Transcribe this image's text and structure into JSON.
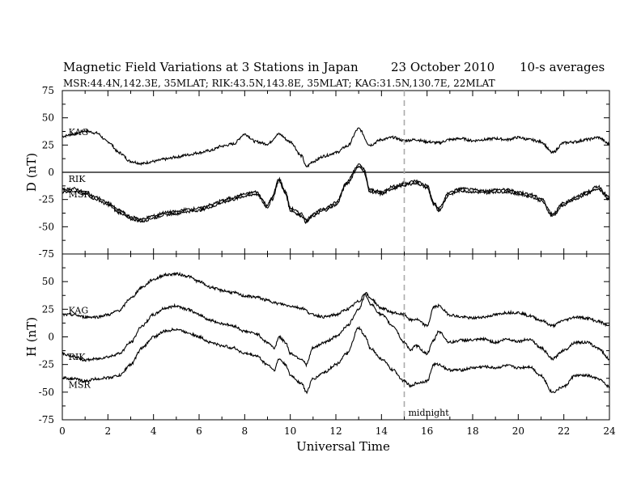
{
  "chart_data": {
    "type": "line",
    "title": "Magnetic Field Variations at 3 Stations in Japan",
    "date": "23  October 2010",
    "averaging": "10-s averages",
    "subtitle": "MSR:44.4N,142.3E, 35MLAT;  RIK:43.5N,143.8E, 35MLAT;  KAG:31.5N,130.7E, 22MLAT",
    "xlabel": "Universal Time",
    "xlim": [
      0,
      24
    ],
    "xticks": [
      "0",
      "2",
      "4",
      "6",
      "8",
      "10",
      "12",
      "14",
      "16",
      "18",
      "20",
      "22",
      "24"
    ],
    "annotation": {
      "text": "midnight",
      "x": 15
    },
    "grid": false,
    "panels": [
      {
        "ylabel": "D (nT)",
        "ylim": [
          -75,
          75
        ],
        "yticks": [
          "75",
          "50",
          "25",
          "0",
          "-25",
          "-50",
          "-75"
        ],
        "zero_line": true,
        "series": [
          {
            "name": "KAG",
            "x": [
              0,
              0.5,
              1,
              1.5,
              2,
              2.5,
              3,
              3.5,
              4,
              4.5,
              5,
              5.5,
              6,
              6.5,
              7,
              7.5,
              8,
              8.5,
              9,
              9.5,
              10,
              10.5,
              10.7,
              11,
              11.5,
              12,
              12.5,
              13,
              13.5,
              14,
              14.5,
              15,
              15.5,
              16,
              16.5,
              17,
              17.5,
              18,
              18.5,
              19,
              19.5,
              20,
              20.5,
              21,
              21.5,
              22,
              22.5,
              23,
              23.5,
              24
            ],
            "y": [
              33,
              35,
              38,
              36,
              28,
              18,
              10,
              8,
              10,
              12,
              14,
              16,
              18,
              20,
              24,
              26,
              35,
              28,
              26,
              35,
              28,
              15,
              5,
              10,
              15,
              18,
              24,
              40,
              25,
              30,
              32,
              29,
              30,
              28,
              27,
              30,
              31,
              29,
              30,
              31,
              30,
              32,
              30,
              28,
              18,
              27,
              28,
              30,
              32,
              26
            ]
          },
          {
            "name": "RIK",
            "x": [
              0,
              0.5,
              1,
              1.5,
              2,
              2.5,
              3,
              3.5,
              4,
              4.5,
              5,
              5.5,
              6,
              6.5,
              7,
              7.5,
              8,
              8.5,
              9,
              9.2,
              9.5,
              9.8,
              10,
              10.5,
              10.7,
              11,
              11.5,
              12,
              12.5,
              13,
              13.2,
              13.5,
              14,
              14.5,
              15,
              15.5,
              16,
              16.3,
              16.5,
              17,
              17.5,
              18,
              18.5,
              19,
              19.5,
              20,
              20.5,
              21,
              21.5,
              22,
              22.5,
              23,
              23.5,
              24
            ],
            "y": [
              -18,
              -17,
              -20,
              -25,
              -30,
              -37,
              -43,
              -45,
              -42,
              -39,
              -38,
              -36,
              -35,
              -32,
              -28,
              -25,
              -22,
              -20,
              -32,
              -25,
              -8,
              -20,
              -35,
              -40,
              -46,
              -40,
              -35,
              -30,
              -10,
              5,
              2,
              -18,
              -20,
              -15,
              -12,
              -10,
              -14,
              -30,
              -35,
              -20,
              -17,
              -18,
              -19,
              -18,
              -18,
              -20,
              -22,
              -26,
              -40,
              -30,
              -25,
              -20,
              -15,
              -25
            ]
          },
          {
            "name": "MSR",
            "x": [
              0,
              0.5,
              1,
              1.5,
              2,
              2.5,
              3,
              3.5,
              4,
              4.5,
              5,
              5.5,
              6,
              6.5,
              7,
              7.5,
              8,
              8.5,
              9,
              9.2,
              9.5,
              9.8,
              10,
              10.5,
              10.7,
              11,
              11.5,
              12,
              12.5,
              13,
              13.2,
              13.5,
              14,
              14.5,
              15,
              15.5,
              16,
              16.3,
              16.5,
              17,
              17.5,
              18,
              18.5,
              19,
              19.5,
              20,
              20.5,
              21,
              21.5,
              22,
              22.5,
              23,
              23.5,
              24
            ],
            "y": [
              -16,
              -15,
              -18,
              -23,
              -28,
              -35,
              -41,
              -43,
              -40,
              -37,
              -36,
              -34,
              -33,
              -30,
              -26,
              -23,
              -20,
              -18,
              -30,
              -23,
              -6,
              -18,
              -33,
              -38,
              -44,
              -38,
              -33,
              -28,
              -8,
              7,
              4,
              -16,
              -18,
              -13,
              -10,
              -8,
              -12,
              -28,
              -33,
              -18,
              -15,
              -16,
              -17,
              -16,
              -16,
              -18,
              -20,
              -24,
              -38,
              -28,
              -23,
              -18,
              -13,
              -23
            ]
          }
        ],
        "labels": [
          {
            "text": "KAG",
            "x": 0.2,
            "y": 37
          },
          {
            "text": "RIK",
            "x": 0.2,
            "y": -6
          },
          {
            "text": "MSR",
            "x": 0.2,
            "y": -20
          }
        ]
      },
      {
        "ylabel": "H (nT)",
        "ylim": [
          -75,
          75
        ],
        "yticks": [
          "75",
          "50",
          "25",
          "0",
          "-25",
          "-50",
          "-75"
        ],
        "zero_line": false,
        "series": [
          {
            "name": "KAG",
            "x": [
              0,
              0.5,
              1,
              1.5,
              2,
              2.5,
              3,
              3.5,
              4,
              4.5,
              5,
              5.5,
              6,
              6.5,
              7,
              7.5,
              8,
              8.5,
              9,
              9.5,
              10,
              10.5,
              11,
              11.5,
              12,
              12.5,
              13,
              13.3,
              13.5,
              14,
              14.5,
              15,
              15.3,
              15.5,
              16,
              16.3,
              16.5,
              17,
              17.5,
              18,
              18.5,
              19,
              19.5,
              20,
              20.5,
              21,
              21.5,
              22,
              22.5,
              23,
              23.5,
              24
            ],
            "y": [
              20,
              20,
              18,
              18,
              20,
              24,
              35,
              45,
              52,
              56,
              57,
              55,
              50,
              45,
              42,
              40,
              37,
              36,
              33,
              30,
              28,
              26,
              20,
              18,
              20,
              25,
              32,
              40,
              35,
              26,
              22,
              20,
              15,
              16,
              10,
              27,
              28,
              20,
              18,
              17,
              18,
              20,
              22,
              22,
              19,
              15,
              10,
              15,
              18,
              17,
              14,
              10
            ]
          },
          {
            "name": "RIK",
            "x": [
              0,
              0.5,
              1,
              1.5,
              2,
              2.5,
              3,
              3.5,
              4,
              4.5,
              5,
              5.5,
              6,
              6.5,
              7,
              7.5,
              8,
              8.5,
              9,
              9.3,
              9.5,
              9.8,
              10,
              10.5,
              10.7,
              11,
              11.5,
              12,
              12.5,
              13,
              13.3,
              13.5,
              14,
              14.5,
              15,
              15.3,
              15.5,
              16,
              16.3,
              16.5,
              17,
              17.5,
              18,
              18.5,
              19,
              19.5,
              20,
              20.5,
              21,
              21.5,
              22,
              22.5,
              23,
              23.5,
              24
            ],
            "y": [
              -15,
              -18,
              -21,
              -20,
              -18,
              -15,
              -5,
              10,
              20,
              26,
              28,
              25,
              20,
              15,
              12,
              10,
              5,
              3,
              -5,
              -10,
              0,
              -5,
              -15,
              -20,
              -25,
              -10,
              -5,
              0,
              10,
              25,
              38,
              30,
              20,
              10,
              -5,
              -12,
              -8,
              -15,
              -3,
              5,
              -5,
              -3,
              -3,
              -2,
              -5,
              -2,
              -4,
              -2,
              -10,
              -20,
              -12,
              -5,
              -5,
              -10,
              -20
            ]
          },
          {
            "name": "MSR",
            "x": [
              0,
              0.5,
              1,
              1.5,
              2,
              2.5,
              3,
              3.5,
              4,
              4.5,
              5,
              5.5,
              6,
              6.5,
              7,
              7.5,
              8,
              8.5,
              9,
              9.3,
              9.5,
              9.8,
              10,
              10.5,
              10.7,
              11,
              11.5,
              12,
              12.5,
              13,
              13.3,
              13.5,
              14,
              14.5,
              15,
              15.3,
              15.5,
              16,
              16.3,
              16.5,
              17,
              17.5,
              18,
              18.5,
              19,
              19.5,
              20,
              20.5,
              21,
              21.5,
              22,
              22.5,
              23,
              23.5,
              24
            ],
            "y": [
              -37,
              -38,
              -40,
              -38,
              -37,
              -35,
              -25,
              -10,
              0,
              5,
              7,
              4,
              0,
              -5,
              -8,
              -10,
              -15,
              -17,
              -25,
              -30,
              -20,
              -25,
              -35,
              -42,
              -50,
              -38,
              -32,
              -25,
              -15,
              8,
              0,
              -10,
              -20,
              -30,
              -40,
              -45,
              -42,
              -40,
              -25,
              -25,
              -30,
              -30,
              -28,
              -27,
              -28,
              -26,
              -28,
              -27,
              -35,
              -50,
              -45,
              -35,
              -35,
              -38,
              -45
            ]
          }
        ],
        "labels": [
          {
            "text": "KAG",
            "x": 0.2,
            "y": 24
          },
          {
            "text": "RIK",
            "x": 0.2,
            "y": -18
          },
          {
            "text": "MSR",
            "x": 0.2,
            "y": -43
          }
        ]
      }
    ]
  }
}
